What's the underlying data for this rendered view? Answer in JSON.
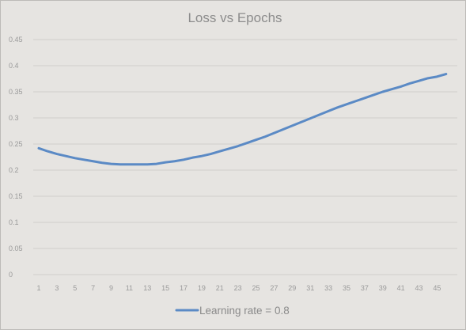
{
  "chart_data": {
    "type": "line",
    "title": "Loss vs Epochs",
    "xlabel": "",
    "ylabel": "",
    "x": [
      1,
      2,
      3,
      4,
      5,
      6,
      7,
      8,
      9,
      10,
      11,
      12,
      13,
      14,
      15,
      16,
      17,
      18,
      19,
      20,
      21,
      22,
      23,
      24,
      25,
      26,
      27,
      28,
      29,
      30,
      31,
      32,
      33,
      34,
      35,
      36,
      37,
      38,
      39,
      40,
      41,
      42,
      43,
      44,
      45,
      46
    ],
    "x_tick_labels": [
      "1",
      "3",
      "5",
      "7",
      "9",
      "11",
      "13",
      "15",
      "17",
      "19",
      "21",
      "23",
      "25",
      "27",
      "29",
      "31",
      "33",
      "35",
      "37",
      "39",
      "41",
      "43",
      "45"
    ],
    "y_tick_labels": [
      "0",
      "0.05",
      "0.1",
      "0.15",
      "0.2",
      "0.25",
      "0.3",
      "0.35",
      "0.4",
      "0.45"
    ],
    "ylim": [
      0,
      0.45
    ],
    "grid": true,
    "legend_position": "bottom",
    "series": [
      {
        "name": "Learning rate = 0.8",
        "color": "#5b8ac5",
        "values": [
          0.242,
          0.236,
          0.231,
          0.227,
          0.223,
          0.22,
          0.217,
          0.214,
          0.212,
          0.211,
          0.211,
          0.211,
          0.211,
          0.212,
          0.215,
          0.217,
          0.22,
          0.224,
          0.227,
          0.231,
          0.236,
          0.241,
          0.246,
          0.252,
          0.258,
          0.264,
          0.271,
          0.278,
          0.285,
          0.292,
          0.299,
          0.306,
          0.313,
          0.32,
          0.326,
          0.332,
          0.338,
          0.344,
          0.35,
          0.355,
          0.36,
          0.366,
          0.371,
          0.376,
          0.379,
          0.384
        ]
      }
    ]
  },
  "style": {
    "background": "#e6e4e1",
    "grid_color": "#d0ceca",
    "frame_color": "#bdbbb7"
  }
}
